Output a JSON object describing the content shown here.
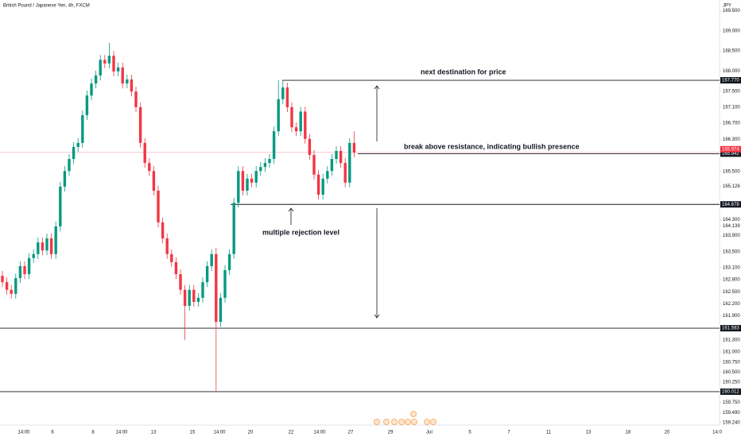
{
  "chart_data": {
    "type": "candlestick",
    "title": "British Pound / Japanese Yen, 4h, FXCM",
    "currency": "JPY",
    "up_color": "#089981",
    "down_color": "#f23645",
    "ylim": [
      159.18,
      169.77
    ],
    "yticks": [
      {
        "value": 169.5,
        "label": "169.500"
      },
      {
        "value": 169,
        "label": "169.000"
      },
      {
        "value": 168.5,
        "label": "168.500"
      },
      {
        "value": 168,
        "label": "168.000"
      },
      {
        "value": 167.5,
        "label": "167.500"
      },
      {
        "value": 167.1,
        "label": "167.100"
      },
      {
        "value": 166.7,
        "label": "166.700"
      },
      {
        "value": 166.3,
        "label": "166.300"
      },
      {
        "value": 165.5,
        "label": "165.500"
      },
      {
        "value": 165.126,
        "label": "165.126"
      },
      {
        "value": 164.3,
        "label": "164.300"
      },
      {
        "value": 164.139,
        "label": "164.139"
      },
      {
        "value": 163.9,
        "label": "163.900"
      },
      {
        "value": 163.5,
        "label": "163.500"
      },
      {
        "value": 163.1,
        "label": "163.100"
      },
      {
        "value": 162.8,
        "label": "162.800"
      },
      {
        "value": 162.5,
        "label": "162.500"
      },
      {
        "value": 162.2,
        "label": "162.200"
      },
      {
        "value": 161.9,
        "label": "161.900"
      },
      {
        "value": 161.3,
        "label": "161.300"
      },
      {
        "value": 161,
        "label": "161.000"
      },
      {
        "value": 160.75,
        "label": "160.750"
      },
      {
        "value": 160.5,
        "label": "160.500"
      },
      {
        "value": 160.25,
        "label": "160.250"
      },
      {
        "value": 159.75,
        "label": "159.750"
      },
      {
        "value": 159.49,
        "label": "159.490"
      },
      {
        "value": 159.24,
        "label": "159.240"
      }
    ],
    "x_labels": [
      "14:00",
      "6",
      "8",
      "14:00",
      "13",
      "15",
      "14:00",
      "20",
      "22",
      "14:00",
      "27",
      "29",
      "Jul",
      "5",
      "7",
      "11",
      "13",
      "18",
      "20",
      "14:0"
    ],
    "levels": [
      {
        "value": 167.77,
        "label": "167.770"
      },
      {
        "value": 165.942,
        "label": "165.942"
      },
      {
        "value": 164.678,
        "label": "164.678"
      },
      {
        "value": 161.593,
        "label": "161.593"
      },
      {
        "value": 160.012,
        "label": "160.012"
      }
    ],
    "last_price": {
      "value": 165.974,
      "label": "165.974"
    },
    "annotations": [
      "next destination for price",
      "break above resistance, indicating bullish presence",
      "multiple rejection level"
    ],
    "open": [
      162.9,
      162.74,
      162.55,
      162.45,
      162.84,
      163.14,
      162.94,
      163.34,
      163.44,
      163.73,
      163.53,
      163.83,
      163.44,
      164.13,
      165.12,
      165.51,
      165.81,
      166.11,
      166.21,
      166.9,
      167.39,
      167.69,
      167.89,
      168.28,
      168.19,
      168.38,
      167.99,
      168.09,
      167.69,
      167.79,
      167.49,
      167.1,
      166.21,
      165.71,
      165.51,
      165.02,
      164.23,
      163.83,
      163.44,
      163.24,
      162.94,
      162.55,
      162.15,
      162.55,
      162.25,
      162.35,
      162.74,
      163.14,
      163.44,
      161.75,
      162.35,
      163.04,
      163.44,
      164.72,
      165.51,
      165.02,
      165.32,
      165.22,
      165.51,
      165.61,
      165.71,
      165.81,
      166.5,
      167.3,
      167.59,
      167.1,
      166.6,
      166.5,
      166.99,
      166.31,
      165.91,
      165.42,
      164.92,
      165.32,
      165.51,
      165.81,
      166.01,
      165.71,
      165.22,
      166.21
    ],
    "high": [
      163.02,
      162.86,
      162.67,
      162.96,
      163.26,
      163.26,
      163.46,
      163.56,
      163.85,
      163.85,
      163.95,
      163.95,
      164.25,
      165.24,
      165.63,
      165.93,
      166.23,
      166.33,
      167.02,
      167.51,
      167.81,
      168.01,
      168.4,
      168.4,
      168.7,
      168.5,
      168.21,
      168.21,
      167.91,
      167.91,
      167.61,
      167.22,
      166.33,
      165.83,
      165.63,
      165.14,
      164.35,
      163.95,
      163.56,
      163.36,
      163.06,
      162.67,
      162.67,
      162.67,
      162.47,
      162.86,
      163.26,
      163.56,
      163.6,
      162.47,
      163.16,
      163.56,
      164.84,
      165.63,
      165.63,
      165.44,
      165.44,
      165.63,
      165.73,
      165.83,
      165.93,
      166.62,
      167.77,
      167.77,
      167.71,
      167.22,
      166.72,
      167.11,
      167.11,
      166.43,
      166.03,
      165.54,
      165.44,
      165.63,
      165.93,
      166.13,
      166.13,
      165.83,
      166.33,
      166.5
    ],
    "low": [
      162.62,
      162.43,
      162.33,
      162.33,
      162.72,
      162.82,
      162.82,
      163.22,
      163.32,
      163.41,
      163.41,
      163.32,
      163.32,
      164.01,
      165.0,
      165.39,
      165.69,
      165.99,
      166.09,
      166.78,
      167.27,
      167.57,
      167.77,
      168.07,
      168.07,
      167.87,
      167.87,
      167.57,
      167.57,
      167.37,
      166.98,
      166.09,
      165.59,
      165.39,
      164.9,
      164.11,
      163.71,
      163.32,
      163.12,
      162.82,
      162.43,
      161.3,
      162.03,
      162.13,
      162.13,
      162.23,
      162.62,
      163.02,
      160.01,
      161.63,
      162.23,
      162.92,
      163.32,
      164.6,
      164.9,
      164.9,
      165.1,
      165.1,
      165.39,
      165.49,
      165.59,
      165.69,
      166.38,
      167.18,
      166.98,
      166.48,
      166.38,
      166.38,
      166.19,
      165.79,
      165.3,
      164.8,
      164.8,
      165.2,
      165.39,
      165.69,
      165.59,
      165.1,
      165.1,
      165.85
    ],
    "close": [
      162.74,
      162.55,
      162.45,
      162.84,
      163.14,
      162.94,
      163.34,
      163.44,
      163.73,
      163.53,
      163.83,
      163.44,
      164.13,
      165.12,
      165.51,
      165.81,
      166.11,
      166.21,
      166.9,
      167.39,
      167.69,
      167.89,
      168.28,
      168.19,
      168.38,
      167.99,
      168.09,
      167.69,
      167.79,
      167.49,
      167.1,
      166.21,
      165.71,
      165.51,
      165.02,
      164.23,
      163.83,
      163.44,
      163.24,
      162.94,
      162.55,
      162.15,
      162.55,
      162.25,
      162.35,
      162.74,
      163.14,
      163.44,
      161.75,
      162.35,
      163.04,
      163.44,
      164.72,
      165.51,
      165.02,
      165.32,
      165.22,
      165.51,
      165.61,
      165.71,
      165.81,
      166.5,
      167.3,
      167.59,
      167.1,
      166.6,
      166.5,
      166.99,
      166.31,
      165.91,
      165.42,
      164.92,
      165.32,
      165.51,
      165.81,
      166.01,
      165.71,
      165.22,
      166.21,
      165.97
    ]
  }
}
